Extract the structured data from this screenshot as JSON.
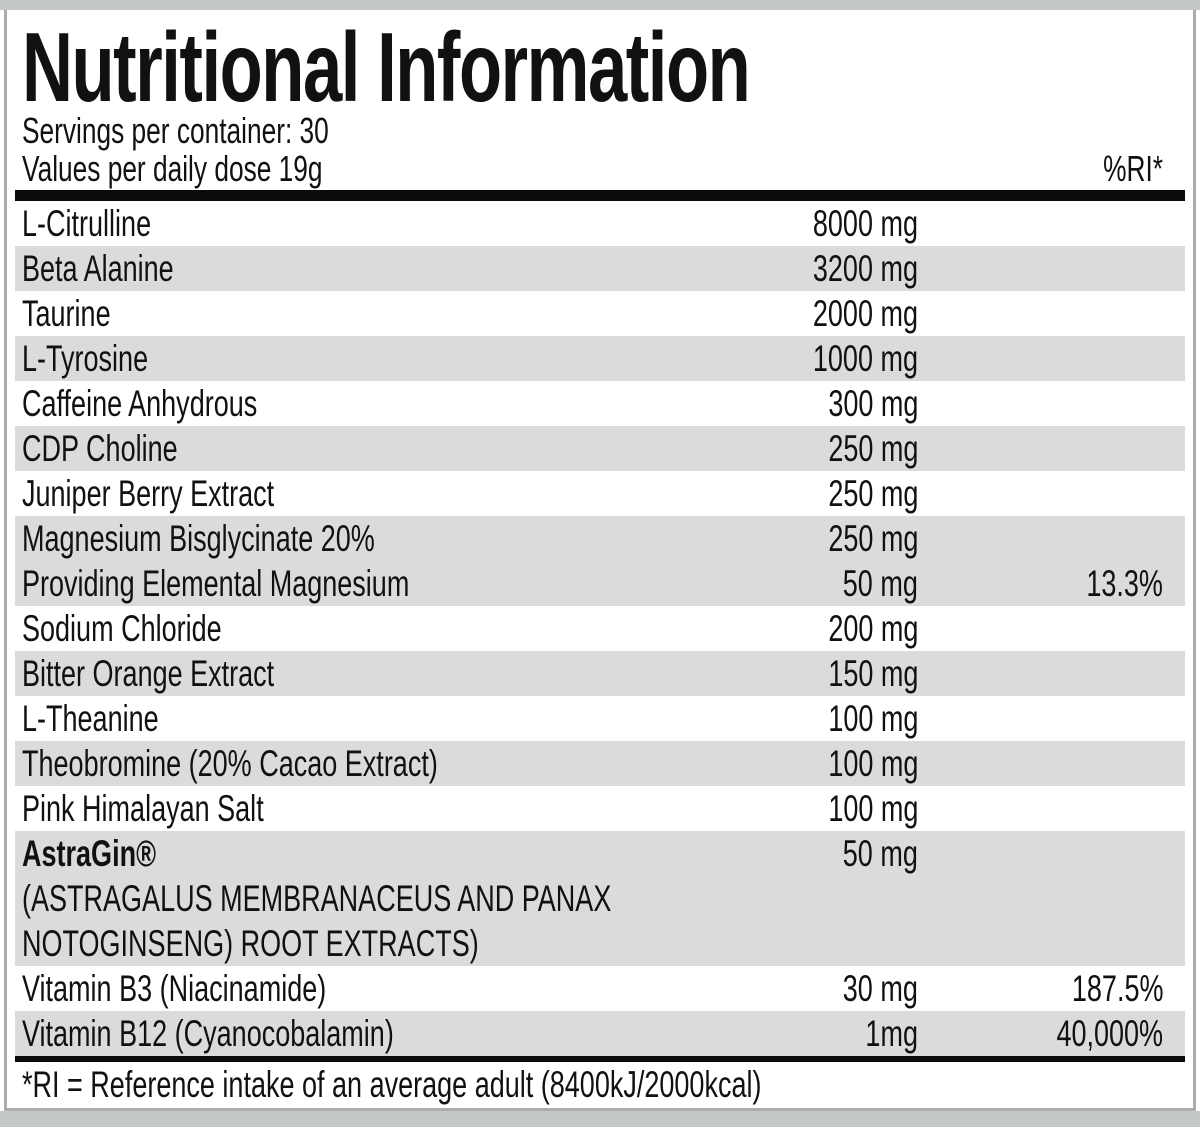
{
  "colors": {
    "strip_color": "#c4c9c6",
    "border_color": "#a9ada9",
    "stripe_color": "#dadcd9"
  },
  "header": {
    "title": "Nutritional Information",
    "servings_line": "Servings per container: 30",
    "values_line": "Values per daily dose 19g",
    "ri_column_header": "%RI*"
  },
  "table": {
    "rows": [
      {
        "name": "L-Citrulline",
        "amount": "8000 mg",
        "ri": ""
      },
      {
        "name": "Beta Alanine",
        "amount": "3200 mg",
        "ri": ""
      },
      {
        "name": "Taurine",
        "amount": "2000 mg",
        "ri": ""
      },
      {
        "name": "L-Tyrosine",
        "amount": "1000 mg",
        "ri": ""
      },
      {
        "name": "Caffeine Anhydrous",
        "amount": "300 mg",
        "ri": ""
      },
      {
        "name": "CDP Choline",
        "amount": "250 mg",
        "ri": ""
      },
      {
        "name": "Juniper Berry Extract",
        "amount": "250 mg",
        "ri": ""
      },
      {
        "name": "Magnesium Bisglycinate 20%",
        "amount": "250 mg",
        "ri": ""
      },
      {
        "name": "Providing Elemental Magnesium",
        "amount": "50 mg",
        "ri": "13.3%"
      },
      {
        "name": "Sodium Chloride",
        "amount": "200 mg",
        "ri": ""
      },
      {
        "name": "Bitter Orange Extract",
        "amount": "150 mg",
        "ri": ""
      },
      {
        "name": "L-Theanine",
        "amount": "100 mg",
        "ri": ""
      },
      {
        "name": "Theobromine (20% Cacao Extract)",
        "amount": "100 mg",
        "ri": ""
      },
      {
        "name": "Pink Himalayan Salt",
        "amount": "100 mg",
        "ri": ""
      },
      {
        "name": "AstraGin®",
        "amount": "50 mg",
        "ri": "",
        "sub_line_1": "(ASTRAGALUS MEMBRANACEUS AND PANAX",
        "sub_line_2": "NOTOGINSENG) ROOT EXTRACTS)"
      },
      {
        "name": "Vitamin B3 (Niacinamide)",
        "amount": "30 mg",
        "ri": "187.5%"
      },
      {
        "name": "Vitamin B12 (Cyanocobalamin)",
        "amount": "1mg",
        "ri": "40,000%"
      }
    ]
  },
  "footer": {
    "note": "*RI = Reference intake of an average adult (8400kJ/2000kcal)"
  }
}
